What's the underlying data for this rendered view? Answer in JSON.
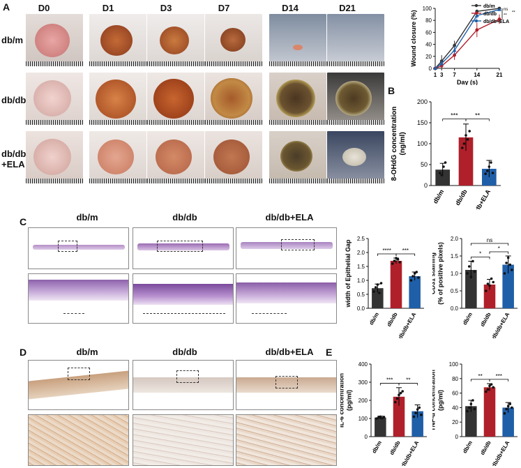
{
  "panels": {
    "A": "A",
    "B": "B",
    "C": "C",
    "D": "D",
    "E": "E"
  },
  "panel_a": {
    "days": [
      "D0",
      "D1",
      "D3",
      "D7",
      "D14",
      "D21"
    ],
    "rows": [
      "db/m",
      "db/db",
      "db/db\n+ELA"
    ]
  },
  "panel_c": {
    "headers": [
      "db/m",
      "db/db",
      "db/db+ELA"
    ]
  },
  "panel_d": {
    "headers": [
      "db/m",
      "db/db",
      "db/db+ELA"
    ]
  },
  "colors": {
    "dbm": "#333333",
    "dbdb": "#b0202a",
    "ela": "#1f5fa8"
  },
  "chart_data": [
    {
      "id": "wound-closure",
      "type": "line",
      "title": "",
      "xlabel": "Day (s)",
      "ylabel": "Wound closure (%)",
      "x": [
        1,
        3,
        7,
        14,
        21
      ],
      "xticks": [
        "1",
        "3",
        "7",
        "14",
        "21"
      ],
      "ylim": [
        0,
        100
      ],
      "yticks": [
        0,
        20,
        40,
        60,
        80,
        100
      ],
      "series": [
        {
          "name": "db/m",
          "values": [
            0,
            12,
            38,
            95,
            100
          ],
          "err": [
            0,
            10,
            8,
            3,
            0
          ]
        },
        {
          "name": "db/db",
          "values": [
            0,
            4,
            22,
            64,
            82
          ],
          "err": [
            0,
            3,
            8,
            12,
            8
          ]
        },
        {
          "name": "db/db+ELA",
          "values": [
            0,
            8,
            30,
            88,
            98
          ],
          "err": [
            0,
            5,
            8,
            5,
            2
          ]
        }
      ],
      "sig": [
        "ns",
        "**",
        "**"
      ]
    },
    {
      "id": "ohdg",
      "type": "bar",
      "xlabel": "",
      "ylabel": "8-OHdG concentration\n(ng/ml)",
      "categories": [
        "db/m",
        "db/db",
        "db/db+ELA"
      ],
      "values": [
        38,
        115,
        40
      ],
      "err": [
        15,
        32,
        20
      ],
      "points": [
        [
          30,
          25,
          45,
          55
        ],
        [
          90,
          100,
          120,
          110,
          130
        ],
        [
          28,
          35,
          45,
          55,
          30
        ]
      ],
      "ylim": [
        0,
        200
      ],
      "yticks": [
        0,
        50,
        100,
        150,
        200
      ],
      "sig": [
        {
          "a": 0,
          "b": 1,
          "label": "***"
        },
        {
          "a": 1,
          "b": 2,
          "label": "**"
        }
      ]
    },
    {
      "id": "epi-gap",
      "type": "bar",
      "ylabel": "width of Epithelial Gap",
      "categories": [
        "db/m",
        "db/db",
        "db/db+ELA"
      ],
      "values": [
        0.72,
        1.7,
        1.15
      ],
      "err": [
        0.15,
        0.1,
        0.15
      ],
      "points": [
        [
          0.6,
          0.75,
          0.85,
          0.55,
          0.9
        ],
        [
          1.6,
          1.7,
          1.8,
          1.75,
          1.65
        ],
        [
          1.0,
          1.15,
          1.25,
          1.3,
          1.1
        ]
      ],
      "ylim": [
        0,
        2.5
      ],
      "yticks": [
        0.0,
        0.5,
        1.0,
        1.5,
        2.0,
        2.5
      ],
      "sig": [
        {
          "a": 0,
          "b": 1,
          "label": "****"
        },
        {
          "a": 1,
          "b": 2,
          "label": "***"
        }
      ]
    },
    {
      "id": "cd31",
      "type": "bar",
      "ylabel": "CD31 staining\n(% of positive pixels)",
      "categories": [
        "db/m",
        "db/db",
        "db/db+ELA"
      ],
      "values": [
        1.1,
        0.68,
        1.25
      ],
      "err": [
        0.25,
        0.15,
        0.25
      ],
      "points": [
        [
          1.0,
          1.2,
          0.9,
          1.35,
          1.05
        ],
        [
          0.5,
          0.7,
          0.65,
          0.85,
          0.75
        ],
        [
          1.0,
          1.3,
          1.45,
          1.25,
          1.1
        ]
      ],
      "ylim": [
        0,
        2.0
      ],
      "yticks": [
        0.0,
        0.5,
        1.0,
        1.5,
        2.0
      ],
      "sig": [
        {
          "a": 0,
          "b": 1,
          "label": "*"
        },
        {
          "a": 1,
          "b": 2,
          "label": "*"
        },
        {
          "a": 0,
          "b": 2,
          "label": "ns"
        }
      ]
    },
    {
      "id": "il6",
      "type": "bar",
      "ylabel": "IL-6 concentration\n(pg/ml)",
      "categories": [
        "db/m",
        "db/db",
        "db/db+ELA"
      ],
      "values": [
        105,
        220,
        140
      ],
      "err": [
        8,
        50,
        35
      ],
      "points": [
        [
          100,
          105,
          110,
          102,
          108
        ],
        [
          190,
          210,
          230,
          240,
          250
        ],
        [
          110,
          130,
          150,
          160,
          120
        ]
      ],
      "ylim": [
        0,
        400
      ],
      "yticks": [
        0,
        100,
        200,
        300,
        400
      ],
      "sig": [
        {
          "a": 0,
          "b": 1,
          "label": "***"
        },
        {
          "a": 1,
          "b": 2,
          "label": "**"
        }
      ]
    },
    {
      "id": "tnf",
      "type": "bar",
      "ylabel": "TNF-α concentration\n(pg/ml)",
      "categories": [
        "db/m",
        "db/db",
        "db/db+ELA"
      ],
      "values": [
        42,
        68,
        40
      ],
      "err": [
        8,
        5,
        7
      ],
      "points": [
        [
          35,
          40,
          45,
          50,
          38
        ],
        [
          62,
          65,
          70,
          72,
          68
        ],
        [
          32,
          38,
          42,
          45,
          40
        ]
      ],
      "ylim": [
        0,
        100
      ],
      "yticks": [
        0,
        20,
        40,
        60,
        80,
        100
      ],
      "sig": [
        {
          "a": 0,
          "b": 1,
          "label": "**"
        },
        {
          "a": 1,
          "b": 2,
          "label": "***"
        }
      ]
    }
  ]
}
